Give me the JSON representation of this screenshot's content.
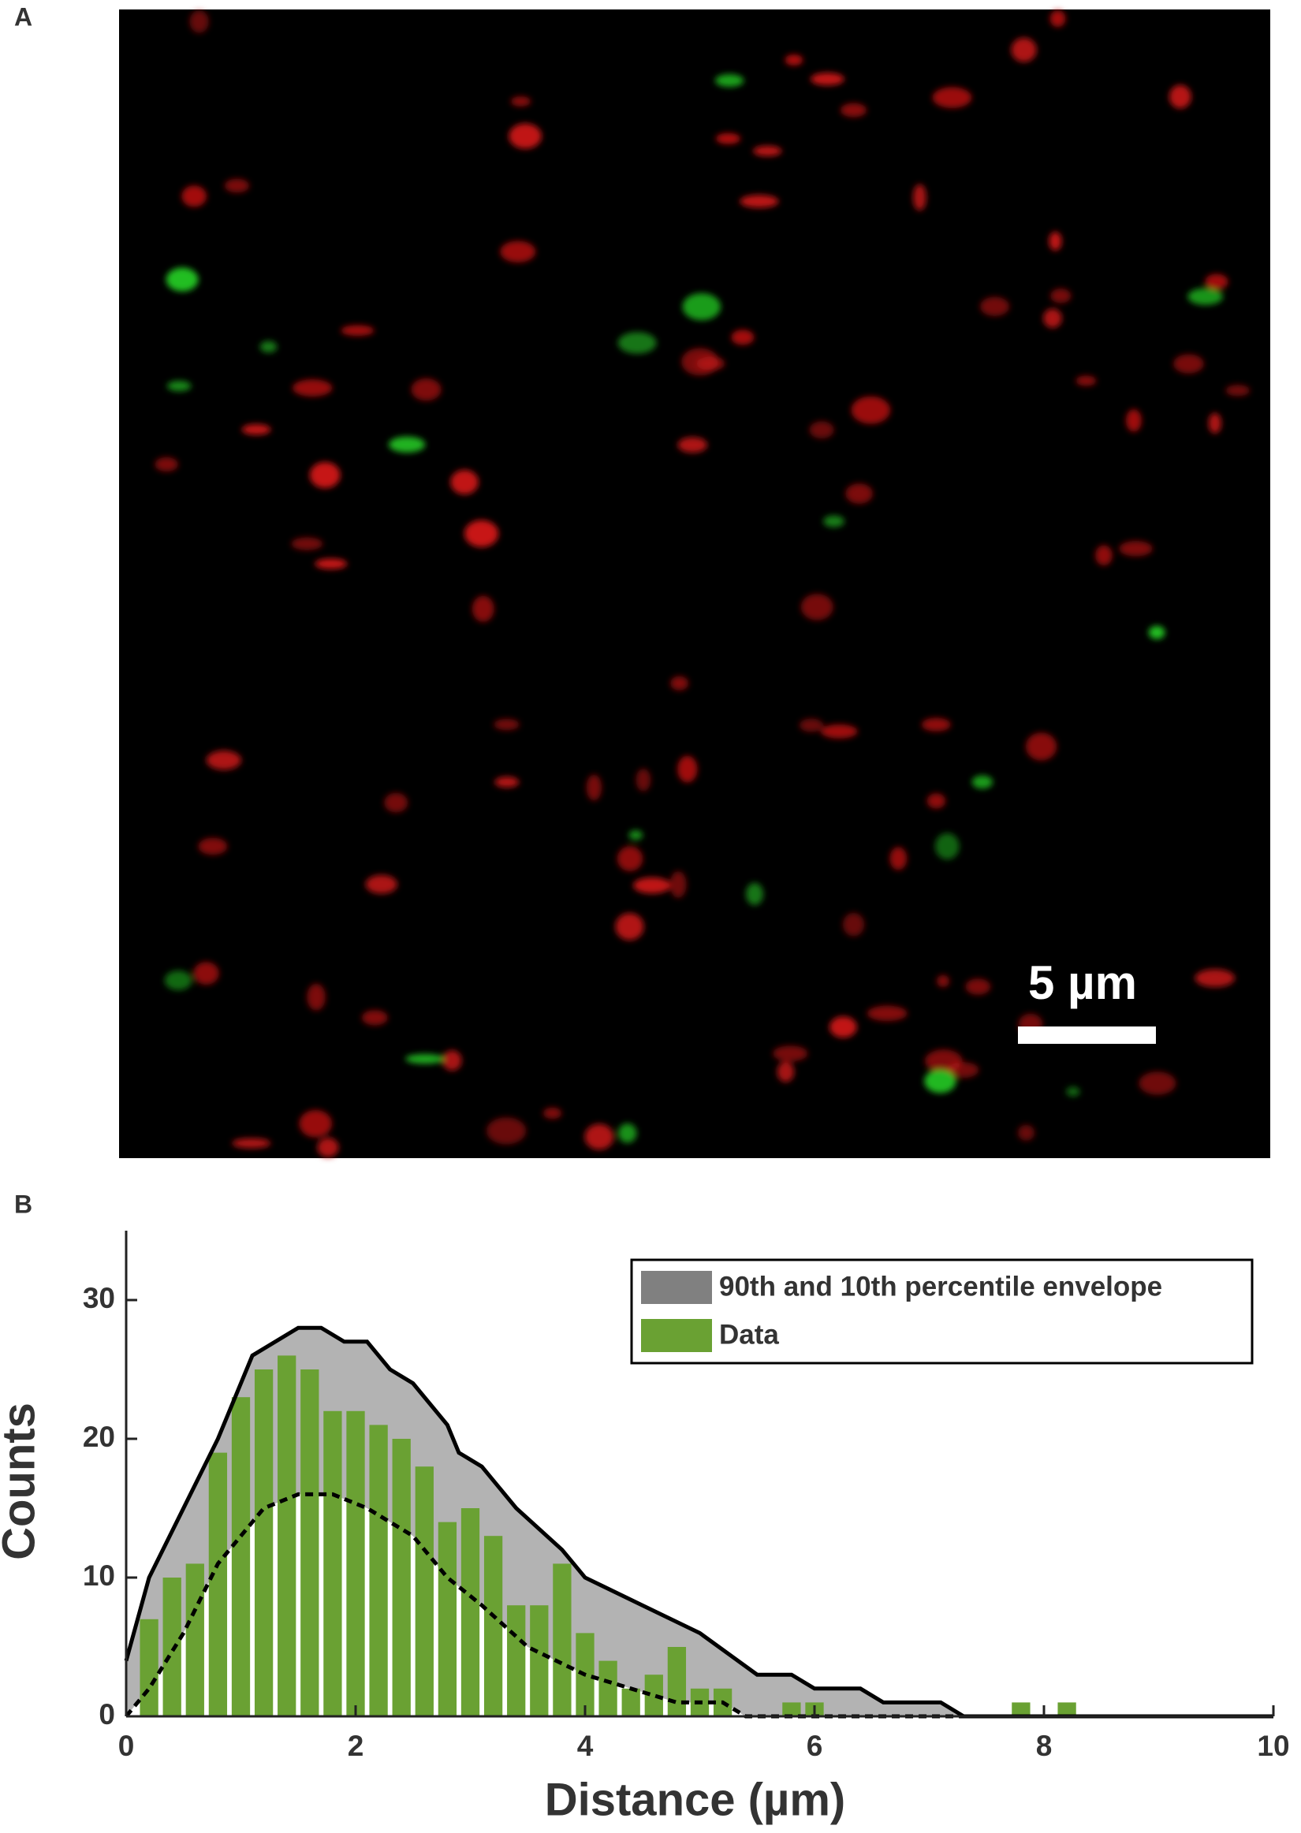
{
  "panel_a": {
    "label": "A",
    "scale_bar": "5 µm"
  },
  "panel_b_label": "B",
  "chart_data": {
    "type": "histogram",
    "name": "Data",
    "color": "#6aa133",
    "bins": [
      0.1,
      0.3,
      0.5,
      0.7,
      0.9,
      1.1,
      1.3,
      1.5,
      1.7,
      1.9,
      2.1,
      2.3,
      2.5,
      2.7,
      2.9,
      3.1,
      3.3,
      3.5,
      3.7,
      3.9,
      4.1,
      4.3,
      4.5,
      4.7,
      4.9,
      5.1,
      5.3,
      5.5,
      5.7,
      5.9,
      6.1,
      6.3,
      6.5,
      6.7,
      6.9,
      7.1,
      7.3,
      7.5,
      7.7,
      7.9,
      8.1,
      8.3
    ],
    "values": [
      7,
      10,
      11,
      19,
      23,
      25,
      26,
      25,
      22,
      22,
      21,
      20,
      18,
      14,
      15,
      13,
      8,
      8,
      11,
      6,
      4,
      2,
      3,
      5,
      2,
      2,
      0,
      0,
      1,
      1,
      0,
      0,
      0,
      0,
      0,
      0,
      0,
      0,
      1,
      0,
      1
    ],
    "envelope": {
      "name": "90th and 10th percentile envelope",
      "color": "#b3b3b3",
      "upper": {
        "x": [
          0,
          0.2,
          0.5,
          0.8,
          1.1,
          1.5,
          1.7,
          1.9,
          2.1,
          2.3,
          2.5,
          2.8,
          2.9,
          3.1,
          3.4,
          3.8,
          4.0,
          4.5,
          5.0,
          5.5,
          5.8,
          6.0,
          6.4,
          6.6,
          7.1,
          7.3,
          10
        ],
        "y": [
          4,
          10,
          15,
          20,
          26,
          28,
          28,
          27,
          27,
          25,
          24,
          21,
          19,
          18,
          15,
          12,
          10,
          8,
          6,
          3,
          3,
          2,
          2,
          1,
          1,
          0,
          0
        ]
      },
      "lower": {
        "x": [
          0,
          0.2,
          0.5,
          0.8,
          1.0,
          1.2,
          1.5,
          1.8,
          2.1,
          2.5,
          2.8,
          3.1,
          3.5,
          4.0,
          4.4,
          4.8,
          5.2,
          5.4,
          10
        ],
        "y": [
          0,
          2,
          6,
          11,
          13,
          15,
          16,
          16,
          15,
          13,
          10,
          8,
          5,
          3,
          2,
          1,
          1,
          0,
          0
        ]
      }
    },
    "xlabel": "Distance (µm)",
    "ylabel": "Counts",
    "xlim": [
      0,
      10
    ],
    "ylim": [
      0,
      35
    ],
    "xticks": [
      0,
      2,
      4,
      6,
      8,
      10
    ],
    "yticks": [
      0,
      10,
      20,
      30
    ]
  }
}
